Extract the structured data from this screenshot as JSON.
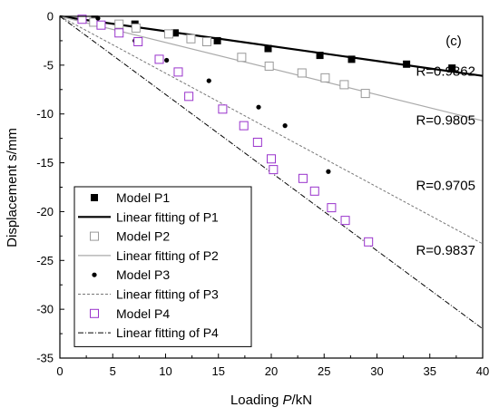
{
  "chart_data": {
    "type": "scatter",
    "panel_label": "(c)",
    "xlabel_prefix": "Loading ",
    "xlabel_italic": "P",
    "xlabel_suffix": "/kN",
    "ylabel": "Displacement s/mm",
    "xlim": [
      0,
      40
    ],
    "ylim": [
      -35,
      0
    ],
    "x_ticks": [
      0,
      5,
      10,
      15,
      20,
      25,
      30,
      35,
      40
    ],
    "y_ticks": [
      0,
      -5,
      -10,
      -15,
      -20,
      -25,
      -30,
      -35
    ],
    "grid": false,
    "legend_position": "bottom-left",
    "series": [
      {
        "name": "Model P1",
        "marker": "filled-square",
        "color": "#000000",
        "x": [
          3.3,
          7.1,
          10.9,
          14.9,
          19.7,
          24.6,
          27.6,
          32.8,
          37.1
        ],
        "y": [
          -0.3,
          -0.8,
          -1.7,
          -2.5,
          -3.3,
          -4.0,
          -4.4,
          -4.9,
          -5.3
        ]
      },
      {
        "name": "Model P2",
        "marker": "open-square",
        "color": "#999999",
        "x": [
          3.2,
          5.6,
          7.2,
          10.3,
          12.4,
          13.9,
          17.2,
          19.8,
          22.9,
          25.1,
          26.9,
          28.9
        ],
        "y": [
          -0.6,
          -0.8,
          -1.2,
          -1.8,
          -2.3,
          -2.6,
          -4.2,
          -5.1,
          -5.8,
          -6.3,
          -7.0,
          -7.9
        ]
      },
      {
        "name": "Model P3",
        "marker": "filled-circle",
        "color": "#000000",
        "x": [
          3.6,
          7.1,
          10.1,
          14.1,
          18.8,
          21.3,
          25.4
        ],
        "y": [
          -0.2,
          -2.5,
          -4.5,
          -6.6,
          -9.3,
          -11.2,
          -15.9
        ]
      },
      {
        "name": "Model P4",
        "marker": "open-square",
        "color": "#9933cc",
        "x": [
          2.1,
          3.9,
          5.6,
          7.4,
          9.4,
          11.2,
          12.2,
          15.4,
          17.4,
          18.7,
          20.0,
          20.2,
          23.0,
          24.1,
          25.7,
          27.0,
          29.2
        ],
        "y": [
          -0.3,
          -0.9,
          -1.7,
          -2.6,
          -4.4,
          -5.7,
          -8.2,
          -9.5,
          -11.2,
          -12.9,
          -14.6,
          -15.7,
          -16.6,
          -17.9,
          -19.6,
          -20.9,
          -23.1
        ]
      }
    ],
    "fits": [
      {
        "name": "Linear fitting of P1",
        "slope": -0.1525,
        "intercept": 0.0,
        "x_range": [
          0,
          40
        ],
        "color": "#000000",
        "stroke_width": 2.2,
        "dash": "",
        "r_label": "R=0.9862",
        "r_pos": [
          36.5,
          -6.1
        ]
      },
      {
        "name": "Linear fitting of P2",
        "slope": -0.2675,
        "intercept": 0.0,
        "x_range": [
          0,
          40
        ],
        "color": "#aaaaaa",
        "stroke_width": 1.2,
        "dash": "",
        "r_label": "R=0.9805",
        "r_pos": [
          36.5,
          -11.1
        ]
      },
      {
        "name": "Linear fitting of P3",
        "slope": -0.5825,
        "intercept": 0.0,
        "x_range": [
          0,
          40
        ],
        "color": "#777777",
        "stroke_width": 1.0,
        "dash": "3,2",
        "r_label": "R=0.9705",
        "r_pos": [
          36.5,
          -17.8
        ]
      },
      {
        "name": "Linear fitting of P4",
        "slope": -0.8,
        "intercept": 0.0,
        "x_range": [
          0,
          40
        ],
        "color": "#000000",
        "stroke_width": 1.0,
        "dash": "6,2,1,2",
        "r_label": "R=0.9837",
        "r_pos": [
          36.5,
          -24.4
        ]
      }
    ],
    "legend": [
      {
        "label": "Model P1",
        "kind": "marker",
        "ref": "Model P1"
      },
      {
        "label": "Linear fitting of P1",
        "kind": "line",
        "ref": "Linear fitting of P1"
      },
      {
        "label": "Model P2",
        "kind": "marker",
        "ref": "Model P2"
      },
      {
        "label": "Linear fitting of P2",
        "kind": "line",
        "ref": "Linear fitting of P2"
      },
      {
        "label": "Model P3",
        "kind": "marker",
        "ref": "Model P3"
      },
      {
        "label": "Linear fitting of P3",
        "kind": "line",
        "ref": "Linear fitting of P3"
      },
      {
        "label": "Model P4",
        "kind": "marker",
        "ref": "Model P4"
      },
      {
        "label": "Linear fitting of P4",
        "kind": "line",
        "ref": "Linear fitting of P4"
      }
    ]
  }
}
